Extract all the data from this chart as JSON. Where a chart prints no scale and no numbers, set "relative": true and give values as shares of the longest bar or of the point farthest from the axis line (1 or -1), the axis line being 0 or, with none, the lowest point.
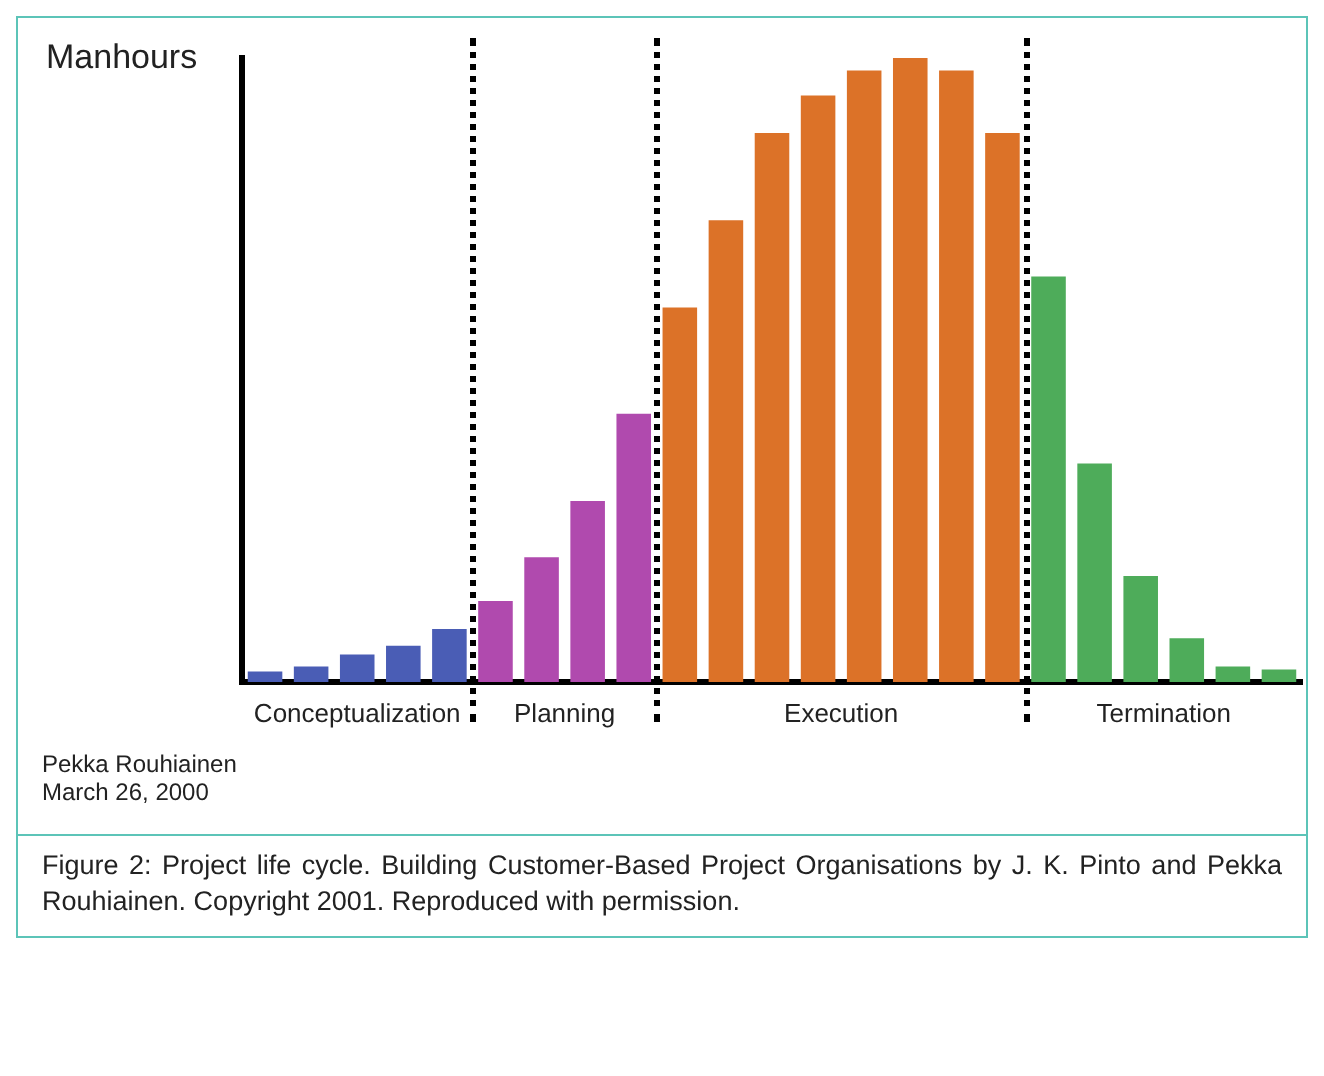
{
  "chart_data": {
    "type": "bar",
    "relative": true,
    "ylabel": "Manhours",
    "grid": false,
    "categories": [
      null,
      null,
      null,
      null,
      null,
      null,
      null,
      null,
      null,
      null,
      null,
      null,
      null,
      null,
      null,
      null,
      null,
      null,
      null,
      null,
      null,
      null,
      null
    ],
    "values": [
      0.017,
      0.025,
      0.044,
      0.058,
      0.085,
      0.13,
      0.2,
      0.29,
      0.43,
      0.6,
      0.74,
      0.88,
      0.94,
      0.98,
      1,
      0.98,
      0.88,
      0.65,
      0.35,
      0.17,
      0.07,
      0.025,
      0.02
    ],
    "colors": [
      "#4a5db5",
      "#4a5db5",
      "#4a5db5",
      "#4a5db5",
      "#4a5db5",
      "#b04aae",
      "#b04aae",
      "#b04aae",
      "#b04aae",
      "#dc7228",
      "#dc7228",
      "#dc7228",
      "#dc7228",
      "#dc7228",
      "#dc7228",
      "#dc7228",
      "#dc7228",
      "#4eac5a",
      "#4eac5a",
      "#4eac5a",
      "#4eac5a",
      "#4eac5a",
      "#4eac5a"
    ],
    "annotations": [
      "Conceptualization",
      "Planning",
      "Execution",
      "Termination",
      "Pekka Rouhiainen",
      "March 26, 2000",
      "Figure 2: Project life cycle. Building Customer-Based Project Organisations by J. K. Pinto and Pekka Rouhiainen. Copyright 2001. Reproduced with permission."
    ]
  }
}
